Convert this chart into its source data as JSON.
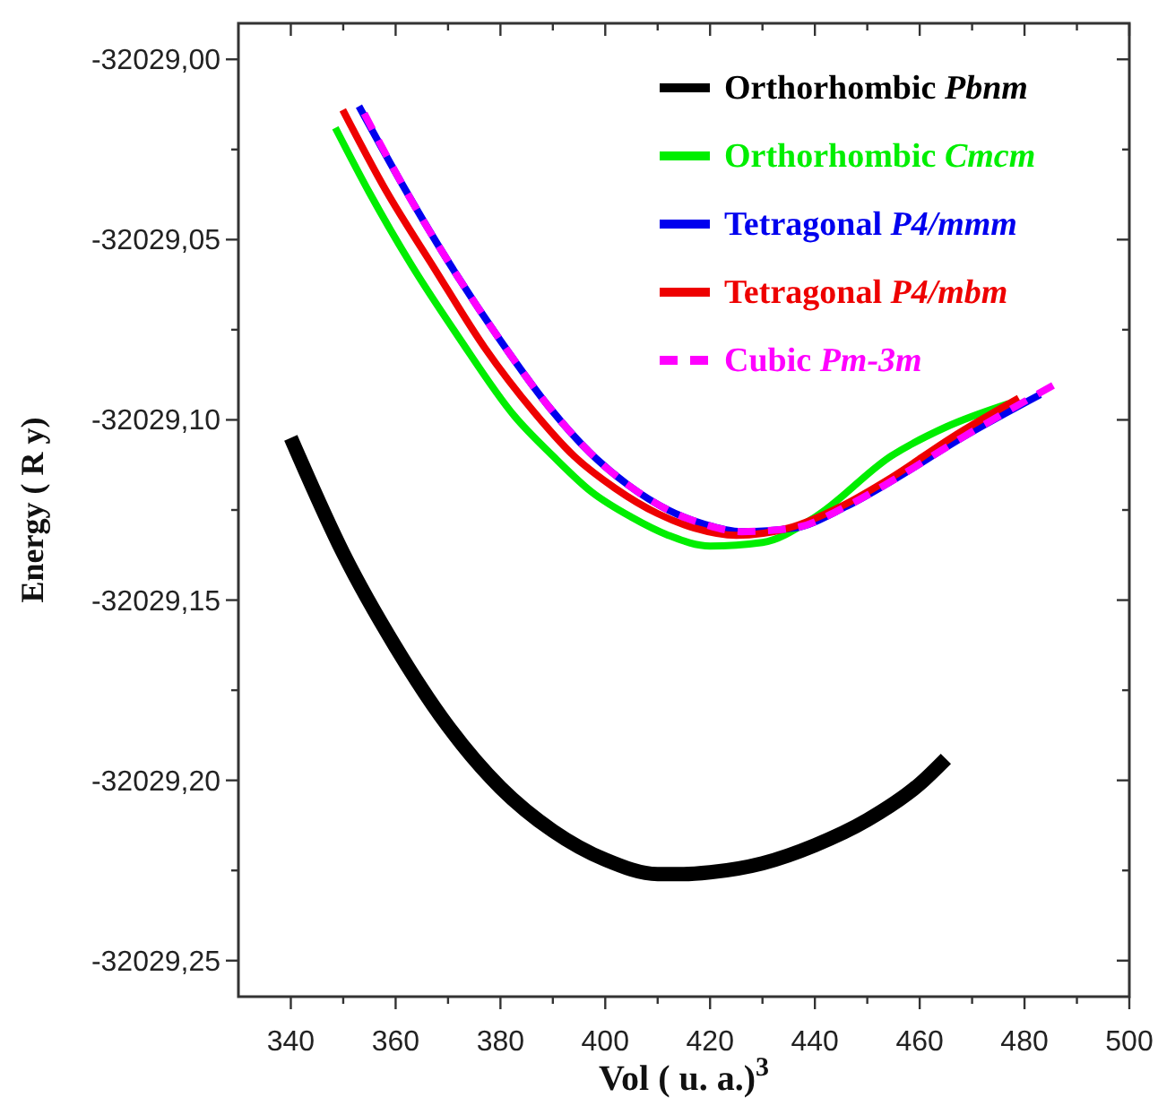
{
  "chart_data": {
    "type": "line",
    "xlabel": "Vol ( u. a.)$^{3}$",
    "ylabel": "Energy ( R y)",
    "xlim": [
      330,
      500
    ],
    "xticks": [
      340,
      {
        "value": 350,
        "label": null
      },
      360,
      {
        "value": 370,
        "label": null
      },
      380,
      {
        "value": 390,
        "label": null
      },
      400,
      {
        "value": 410,
        "label": null
      },
      420,
      {
        "value": 430,
        "label": null
      },
      440,
      {
        "value": 450,
        "label": null
      },
      460,
      {
        "value": 470,
        "label": null
      },
      480,
      {
        "value": 490,
        "label": null
      },
      500
    ],
    "ylim": [
      -32029.26,
      -32028.99
    ],
    "yticks": [
      {
        "value": -32029,
        "label": "-32029,00"
      },
      {
        "value": -32029.025,
        "label": null
      },
      {
        "value": -32029.05,
        "label": "-32029,05"
      },
      {
        "value": -32029.075,
        "label": null
      },
      {
        "value": -32029.1,
        "label": "-32029,10"
      },
      {
        "value": -32029.125,
        "label": null
      },
      {
        "value": -32029.15,
        "label": "-32029,15"
      },
      {
        "value": -32029.175,
        "label": null
      },
      {
        "value": -32029.2,
        "label": "-32029,20"
      },
      {
        "value": -32029.225,
        "label": null
      },
      {
        "value": -32029.25,
        "label": "-32029,25"
      }
    ],
    "legend": "top right",
    "grid": false,
    "marker": "none",
    "series": [
      {
        "name": "Orthorhombic Pbnm",
        "color": "#000000",
        "x": [
          340,
          350,
          360,
          370,
          380,
          390,
          400,
          410,
          415,
          420,
          430,
          440,
          450,
          460,
          465
        ],
        "values": [
          -32029.105,
          -32029.137,
          -32029.163,
          -32029.185,
          -32029.202,
          -32029.214,
          -32029.222,
          -32029.226,
          -32029.226,
          -32029.2255,
          -32029.223,
          -32029.218,
          -32029.211,
          -32029.201,
          -32029.194
        ]
      },
      {
        "name": "Orthorhombic Cmcm",
        "color": "#00ee00",
        "x": [
          348.5,
          355,
          363,
          372,
          382.7,
          390,
          397.4,
          405,
          412,
          420,
          430,
          440,
          454.6,
          465,
          477
        ],
        "values": [
          -32029.019,
          -32029.037,
          -32029.057,
          -32029.077,
          -32029.099,
          -32029.11,
          -32029.12,
          -32029.127,
          -32029.132,
          -32029.135,
          -32029.134,
          -32029.127,
          -32029.11,
          -32029.102,
          -32029.0955
        ]
      },
      {
        "name": "Tetragonal P4/mmm",
        "color": "#0000ee",
        "x": [
          353,
          361,
          370,
          380,
          389.6,
          397,
          404.3,
          412,
          419,
          426,
          436,
          446,
          454.6,
          468,
          483
        ],
        "values": [
          -32029.013,
          -32029.034,
          -32029.056,
          -32029.078,
          -32029.097,
          -32029.109,
          -32029.118,
          -32029.125,
          -32029.129,
          -32029.131,
          -32029.13,
          -32029.124,
          -32029.117,
          -32029.105,
          -32029.093
        ]
      },
      {
        "name": "Tetragonal P4/mbm",
        "color": "#ee0000",
        "x": [
          349.9,
          358,
          367.4,
          377,
          386.5,
          394,
          401.9,
          410,
          417,
          425,
          435,
          445,
          454.6,
          466,
          478.9
        ],
        "values": [
          -32029.014,
          -32029.036,
          -32029.058,
          -32029.08,
          -32029.098,
          -32029.11,
          -32029.119,
          -32029.126,
          -32029.13,
          -32029.132,
          -32029.13,
          -32029.124,
          -32029.116,
          -32029.105,
          -32029.094
        ]
      },
      {
        "name": "Cubic Pm-3m",
        "color": "#ff00ff",
        "line_style": "dashed",
        "x": [
          354,
          361,
          370,
          380,
          389.6,
          397,
          404.3,
          412,
          419,
          426,
          436,
          446,
          454.6,
          468,
          486
        ],
        "values": [
          -32029.015,
          -32029.034,
          -32029.056,
          -32029.078,
          -32029.097,
          -32029.109,
          -32029.118,
          -32029.125,
          -32029.129,
          -32029.131,
          -32029.13,
          -32029.124,
          -32029.117,
          -32029.105,
          -32029.09
        ]
      }
    ]
  }
}
